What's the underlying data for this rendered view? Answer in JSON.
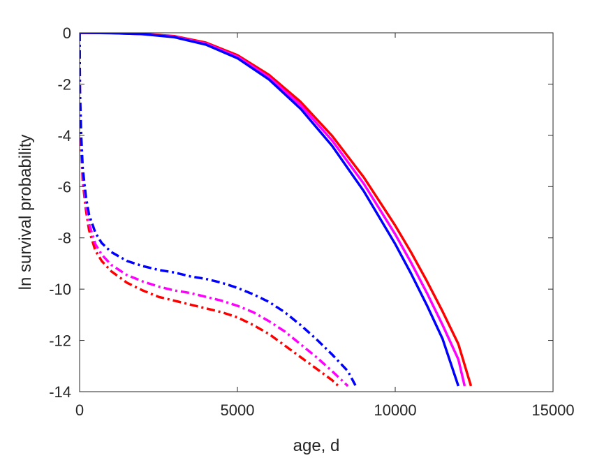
{
  "chart_data": {
    "type": "line",
    "xlabel": "age, d",
    "ylabel": "ln survival probability",
    "xlim": [
      0,
      15000
    ],
    "ylim": [
      -14,
      0
    ],
    "xticks": [
      0,
      5000,
      10000,
      15000
    ],
    "yticks": [
      0,
      -2,
      -4,
      -6,
      -8,
      -10,
      -12,
      -14
    ],
    "grid": false,
    "legend": "none",
    "series": [
      {
        "color": "#ff0000",
        "style": "solid",
        "x": [
          0,
          1000,
          2000,
          3000,
          4000,
          5000,
          6000,
          7000,
          8000,
          9000,
          10000,
          10500,
          11000,
          11500,
          12000,
          12400
        ],
        "y": [
          0,
          -0.01,
          -0.04,
          -0.13,
          -0.38,
          -0.87,
          -1.64,
          -2.69,
          -4.02,
          -5.63,
          -7.52,
          -8.56,
          -9.68,
          -10.87,
          -12.14,
          -13.78
        ]
      },
      {
        "color": "#ff00ff",
        "style": "solid",
        "x": [
          0,
          1000,
          2000,
          3000,
          4000,
          5000,
          6000,
          7000,
          8000,
          9000,
          10000,
          10500,
          11000,
          11500,
          12000,
          12200
        ],
        "y": [
          0,
          -0.01,
          -0.05,
          -0.15,
          -0.42,
          -0.93,
          -1.73,
          -2.82,
          -4.2,
          -5.88,
          -7.86,
          -8.96,
          -10.14,
          -11.4,
          -12.74,
          -13.78
        ]
      },
      {
        "color": "#0000ff",
        "style": "solid",
        "x": [
          0,
          1000,
          2000,
          3000,
          4000,
          5000,
          6000,
          7000,
          8000,
          9000,
          10000,
          10500,
          11000,
          11500,
          12000
        ],
        "y": [
          0,
          -0.01,
          -0.05,
          -0.17,
          -0.46,
          -0.99,
          -1.82,
          -2.96,
          -4.41,
          -6.17,
          -8.24,
          -9.39,
          -10.62,
          -11.94,
          -13.78
        ]
      },
      {
        "color": "#ff0000",
        "style": "dashdot",
        "x": [
          0,
          10,
          50,
          100,
          200,
          300,
          500,
          700,
          1000,
          1500,
          2000,
          2500,
          3000,
          3500,
          4000,
          4500,
          5000,
          5500,
          6000,
          6500,
          7000,
          7500,
          8000,
          8200
        ],
        "y": [
          0,
          -2.5,
          -4.5,
          -5.8,
          -6.9,
          -7.7,
          -8.5,
          -8.9,
          -9.3,
          -9.75,
          -10.05,
          -10.3,
          -10.45,
          -10.6,
          -10.75,
          -10.9,
          -11.1,
          -11.4,
          -11.75,
          -12.2,
          -12.65,
          -13.1,
          -13.55,
          -13.78
        ]
      },
      {
        "color": "#ff00ff",
        "style": "dashdot",
        "x": [
          0,
          10,
          50,
          100,
          200,
          300,
          500,
          700,
          1000,
          1500,
          2000,
          2500,
          3000,
          3500,
          4000,
          4500,
          5000,
          5500,
          6000,
          6500,
          7000,
          7500,
          8000,
          8500
        ],
        "y": [
          0,
          -2.4,
          -4.3,
          -5.6,
          -6.7,
          -7.45,
          -8.25,
          -8.65,
          -9.05,
          -9.45,
          -9.7,
          -9.9,
          -10.05,
          -10.15,
          -10.3,
          -10.45,
          -10.65,
          -10.9,
          -11.25,
          -11.65,
          -12.15,
          -12.65,
          -13.2,
          -13.78
        ]
      },
      {
        "color": "#0000ff",
        "style": "dashdot",
        "x": [
          0,
          10,
          50,
          100,
          200,
          300,
          500,
          700,
          1000,
          1500,
          2000,
          2500,
          3000,
          3500,
          4000,
          4500,
          5000,
          5500,
          6000,
          6500,
          7000,
          7500,
          8000,
          8500,
          8750
        ],
        "y": [
          0,
          -2.2,
          -4.0,
          -5.3,
          -6.4,
          -7.1,
          -7.8,
          -8.2,
          -8.55,
          -8.9,
          -9.1,
          -9.25,
          -9.35,
          -9.5,
          -9.6,
          -9.75,
          -9.95,
          -10.2,
          -10.5,
          -10.9,
          -11.4,
          -11.95,
          -12.55,
          -13.2,
          -13.78
        ]
      }
    ]
  }
}
